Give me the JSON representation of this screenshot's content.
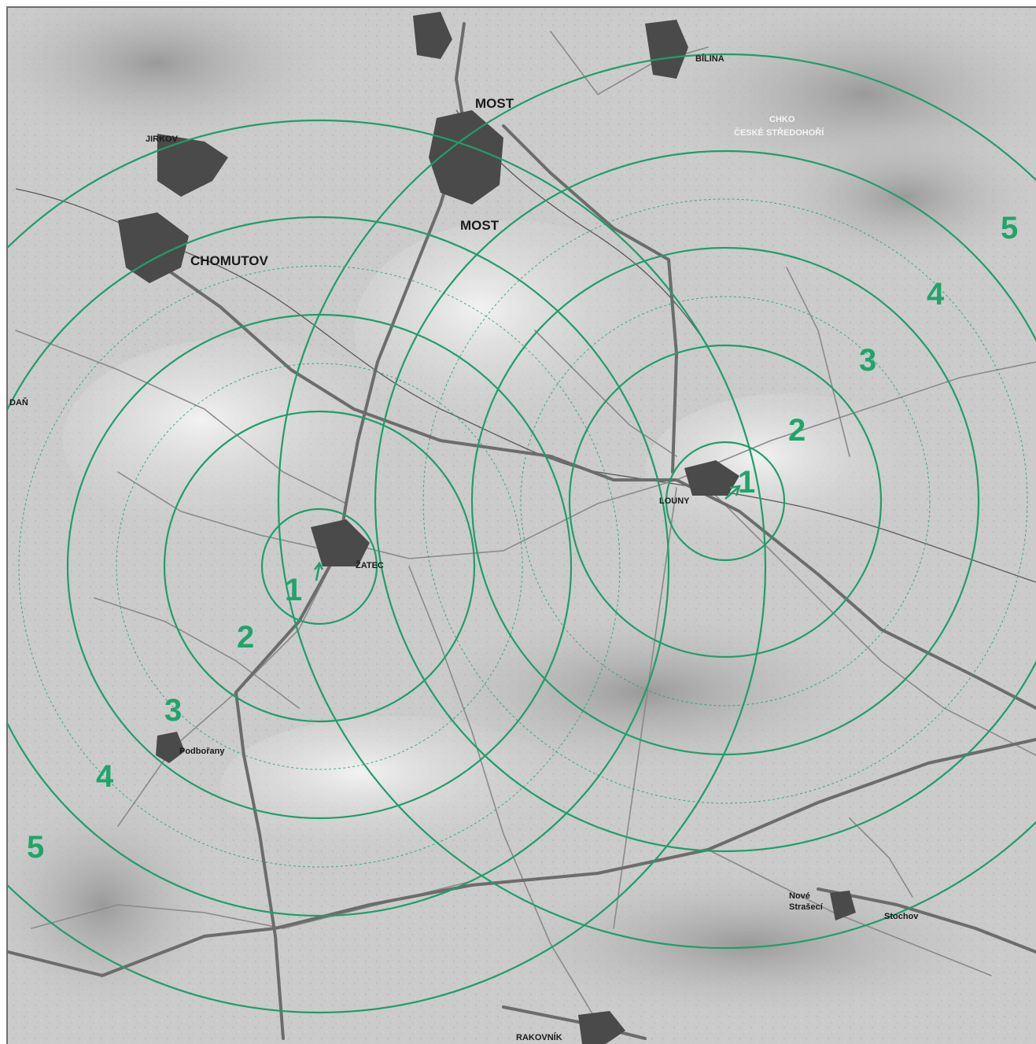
{
  "map": {
    "towns": {
      "most_top": "MOST",
      "most_bottom": "MOST",
      "bilina": "BÍLINA",
      "jirkov": "JIRKOV",
      "chomutov": "CHOMUTOV",
      "chko_line1": "CHKO",
      "chko_line2": "ČESKÉ STŘEDOHOŘÍ",
      "zatec": "ŽATEC",
      "louny": "LOUNY",
      "podborany": "Podbořany",
      "kadan": "DAŇ",
      "nove_straseci_line1": "Nové",
      "nove_straseci_line2": "Strašecí",
      "stochov": "Stochov",
      "rakovnik": "RAKOVNÍK"
    },
    "zatec_rings": {
      "labels": [
        "1",
        "2",
        "3",
        "4",
        "5"
      ]
    },
    "louny_rings": {
      "labels": [
        "1",
        "2",
        "3",
        "4",
        "5"
      ]
    },
    "colors": {
      "ring": "#1f9e6a",
      "ring_number": "#1fa56a",
      "terrain": "#c8c8c8",
      "town": "#4a4a4a"
    }
  }
}
